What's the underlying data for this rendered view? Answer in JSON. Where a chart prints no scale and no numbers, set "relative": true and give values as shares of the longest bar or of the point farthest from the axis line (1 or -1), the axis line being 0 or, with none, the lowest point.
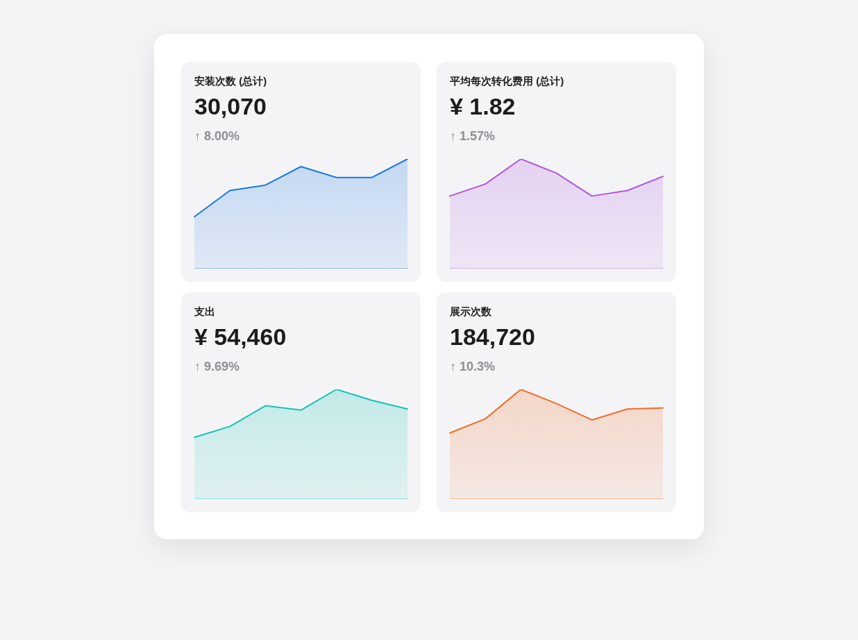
{
  "chart_data": [
    {
      "type": "area",
      "title": "安装次数 (总计)",
      "subtitle": "30,070",
      "annotations": [
        "↑ 8.00%"
      ],
      "relative": true,
      "categories": [
        null,
        null,
        null,
        null,
        null,
        null,
        null
      ],
      "series": [
        {
          "color": "#1677e6",
          "values": [
            0.47,
            0.71,
            0.76,
            0.93,
            0.83,
            0.83,
            1
          ]
        }
      ]
    },
    {
      "type": "area",
      "title": "平均每次转化费用 (总计)",
      "subtitle": "¥ 1.82",
      "annotations": [
        "↑ 1.57%"
      ],
      "relative": true,
      "categories": [
        null,
        null,
        null,
        null,
        null,
        null,
        null
      ],
      "series": [
        {
          "color": "#b055e4",
          "values": [
            0.66,
            0.77,
            1,
            0.87,
            0.66,
            0.71,
            0.84
          ]
        }
      ]
    },
    {
      "type": "area",
      "title": "支出",
      "subtitle": "¥ 54,460",
      "annotations": [
        "↑ 9.69%"
      ],
      "relative": true,
      "categories": [
        null,
        null,
        null,
        null,
        null,
        null,
        null
      ],
      "series": [
        {
          "color": "#14c4b8",
          "values": [
            0.56,
            0.66,
            0.85,
            0.81,
            1,
            0.9,
            0.82
          ]
        }
      ]
    },
    {
      "type": "area",
      "title": "展示次数",
      "subtitle": "184,720",
      "annotations": [
        "↑ 10.3%"
      ],
      "relative": true,
      "categories": [
        null,
        null,
        null,
        null,
        null,
        null,
        null
      ],
      "series": [
        {
          "color": "#f26d25",
          "values": [
            0.6,
            0.73,
            1,
            0.87,
            0.72,
            0.82,
            0.83
          ]
        }
      ]
    }
  ]
}
